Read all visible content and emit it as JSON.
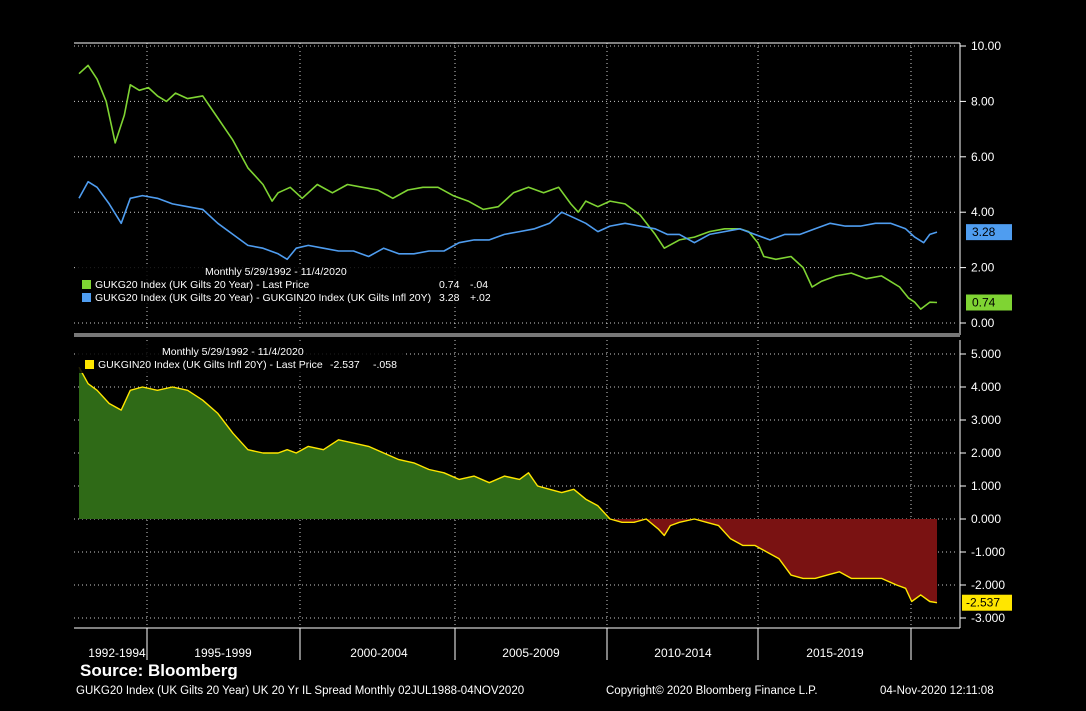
{
  "source_label": "Source: Bloomberg",
  "footer": {
    "left": "GUKG20 Index (UK Gilts 20 Year) UK 20 Yr IL Spread  Monthly 02JUL1988-04NOV2020",
    "middle": "Copyright© 2020 Bloomberg Finance L.P.",
    "right": "04-Nov-2020 12:11:08"
  },
  "colors": {
    "background": "#000000",
    "green_line": "#7fd433",
    "blue_line": "#4f9df0",
    "yellow_line": "#ffe600",
    "positive_fill": "#2f6a17",
    "negative_fill": "#7a1212",
    "grid": "#ffffff"
  },
  "chart_data": [
    {
      "type": "line",
      "legend": {
        "header": "Monthly 5/29/1992 - 11/4/2020",
        "entries": [
          {
            "label": "GUKG20 Index (UK Gilts 20 Year) - Last Price",
            "value": "0.74",
            "change": "-.04",
            "color": "#7fd433"
          },
          {
            "label": "GUKG20 Index (UK Gilts 20 Year) - GUKGIN20 Index (UK Gilts Infl 20Y)",
            "value": "3.28",
            "change": "+.02",
            "color": "#4f9df0"
          }
        ]
      },
      "ylim": [
        0,
        10
      ],
      "yticks": [
        "10.00",
        "8.00",
        "6.00",
        "4.00",
        "2.00",
        "0.00"
      ],
      "last_value_tags": [
        "3.28",
        "0.74"
      ],
      "series": [
        {
          "name": "GUKG20 Index (UK Gilts 20 Year) - Last Price",
          "x": [
            1992.4,
            1992.7,
            1993.0,
            1993.3,
            1993.6,
            1993.9,
            1994.1,
            1994.4,
            1994.7,
            1995.0,
            1995.3,
            1995.6,
            1996.0,
            1996.5,
            1997.0,
            1997.5,
            1998.0,
            1998.5,
            1998.8,
            1999.0,
            1999.4,
            1999.8,
            2000.3,
            2000.8,
            2001.3,
            2001.8,
            2002.3,
            2002.8,
            2003.3,
            2003.8,
            2004.3,
            2004.8,
            2005.3,
            2005.8,
            2006.3,
            2006.8,
            2007.3,
            2007.8,
            2008.3,
            2008.7,
            2008.95,
            2009.2,
            2009.6,
            2010.0,
            2010.5,
            2011.0,
            2011.5,
            2011.8,
            2012.3,
            2012.8,
            2013.3,
            2013.8,
            2014.3,
            2014.6,
            2014.9,
            2015.1,
            2015.5,
            2016.0,
            2016.4,
            2016.7,
            2017.0,
            2017.5,
            2018.0,
            2018.5,
            2019.0,
            2019.3,
            2019.6,
            2019.9,
            2020.1,
            2020.3,
            2020.6,
            2020.84
          ],
          "values": [
            9.0,
            9.3,
            8.8,
            8.0,
            6.5,
            7.5,
            8.6,
            8.4,
            8.5,
            8.2,
            8.0,
            8.3,
            8.1,
            8.2,
            7.4,
            6.6,
            5.6,
            5.0,
            4.4,
            4.7,
            4.9,
            4.5,
            5.0,
            4.7,
            5.0,
            4.9,
            4.8,
            4.5,
            4.8,
            4.9,
            4.9,
            4.6,
            4.4,
            4.1,
            4.2,
            4.7,
            4.9,
            4.7,
            4.9,
            4.3,
            4.0,
            4.4,
            4.2,
            4.4,
            4.3,
            3.9,
            3.2,
            2.7,
            3.0,
            3.1,
            3.3,
            3.4,
            3.4,
            3.3,
            2.9,
            2.4,
            2.3,
            2.4,
            2.0,
            1.3,
            1.5,
            1.7,
            1.8,
            1.6,
            1.7,
            1.5,
            1.3,
            0.9,
            0.75,
            0.5,
            0.75,
            0.74
          ]
        },
        {
          "name": "GUKG20 Index (UK Gilts 20 Year) - GUKGIN20 Index (UK Gilts Infl 20Y)",
          "x": [
            1992.4,
            1992.7,
            1993.0,
            1993.4,
            1993.8,
            1994.1,
            1994.5,
            1995.0,
            1995.5,
            1996.0,
            1996.5,
            1997.0,
            1997.5,
            1998.0,
            1998.5,
            1999.0,
            1999.3,
            1999.6,
            2000.0,
            2000.5,
            2001.0,
            2001.5,
            2002.0,
            2002.5,
            2003.0,
            2003.5,
            2004.0,
            2004.5,
            2005.0,
            2005.5,
            2006.0,
            2006.5,
            2007.0,
            2007.5,
            2008.0,
            2008.4,
            2008.8,
            2009.2,
            2009.6,
            2010.0,
            2010.5,
            2011.0,
            2011.5,
            2011.9,
            2012.3,
            2012.8,
            2013.3,
            2013.8,
            2014.3,
            2014.8,
            2015.3,
            2015.8,
            2016.3,
            2016.8,
            2017.3,
            2017.8,
            2018.3,
            2018.8,
            2019.3,
            2019.8,
            2020.1,
            2020.4,
            2020.6,
            2020.84
          ],
          "values": [
            4.5,
            5.1,
            4.9,
            4.3,
            3.6,
            4.5,
            4.6,
            4.5,
            4.3,
            4.2,
            4.1,
            3.6,
            3.2,
            2.8,
            2.7,
            2.5,
            2.3,
            2.7,
            2.8,
            2.7,
            2.6,
            2.6,
            2.4,
            2.7,
            2.5,
            2.5,
            2.6,
            2.6,
            2.9,
            3.0,
            3.0,
            3.2,
            3.3,
            3.4,
            3.6,
            4.0,
            3.8,
            3.6,
            3.3,
            3.5,
            3.6,
            3.5,
            3.4,
            3.2,
            3.2,
            2.9,
            3.2,
            3.3,
            3.4,
            3.2,
            3.0,
            3.2,
            3.2,
            3.4,
            3.6,
            3.5,
            3.5,
            3.6,
            3.6,
            3.4,
            3.1,
            2.9,
            3.2,
            3.28
          ]
        }
      ]
    },
    {
      "type": "area",
      "legend": {
        "header": "Monthly 5/29/1992 - 11/4/2020",
        "entries": [
          {
            "label": "GUKGIN20 Index (UK Gilts Infl 20Y) - Last Price",
            "value": "-2.537",
            "change": "-.058",
            "color": "#ffe600"
          }
        ]
      },
      "ylim": [
        -3,
        5
      ],
      "yticks": [
        "5.000",
        "4.000",
        "3.000",
        "2.000",
        "1.000",
        "0.000",
        "-1.000",
        "-2.000",
        "-3.000"
      ],
      "last_value_tag": "-2.537",
      "series": [
        {
          "name": "GUKGIN20 Index (UK Gilts Infl 20Y) - Last Price",
          "x": [
            1992.4,
            1992.7,
            1993.0,
            1993.4,
            1993.8,
            1994.1,
            1994.5,
            1995.0,
            1995.5,
            1996.0,
            1996.5,
            1997.0,
            1997.5,
            1998.0,
            1998.5,
            1999.0,
            1999.3,
            1999.6,
            2000.0,
            2000.5,
            2001.0,
            2001.5,
            2002.0,
            2002.5,
            2003.0,
            2003.5,
            2004.0,
            2004.5,
            2005.0,
            2005.5,
            2006.0,
            2006.5,
            2007.0,
            2007.3,
            2007.6,
            2008.0,
            2008.4,
            2008.8,
            2009.2,
            2009.6,
            2010.0,
            2010.4,
            2010.8,
            2011.2,
            2011.6,
            2011.8,
            2012.0,
            2012.3,
            2012.8,
            2013.2,
            2013.6,
            2014.0,
            2014.4,
            2014.8,
            2015.2,
            2015.6,
            2016.0,
            2016.4,
            2016.8,
            2017.2,
            2017.6,
            2018.0,
            2018.5,
            2019.0,
            2019.5,
            2019.8,
            2020.0,
            2020.3,
            2020.6,
            2020.84
          ],
          "values": [
            4.6,
            4.1,
            3.9,
            3.5,
            3.3,
            3.9,
            4.0,
            3.9,
            4.0,
            3.9,
            3.6,
            3.2,
            2.6,
            2.1,
            2.0,
            2.0,
            2.1,
            2.0,
            2.2,
            2.1,
            2.4,
            2.3,
            2.2,
            2.0,
            1.8,
            1.7,
            1.5,
            1.4,
            1.2,
            1.3,
            1.1,
            1.3,
            1.2,
            1.4,
            1.0,
            0.9,
            0.8,
            0.9,
            0.6,
            0.4,
            0.0,
            -0.1,
            -0.1,
            0.0,
            -0.3,
            -0.5,
            -0.2,
            -0.1,
            0.0,
            -0.1,
            -0.2,
            -0.6,
            -0.8,
            -0.8,
            -1.0,
            -1.2,
            -1.7,
            -1.8,
            -1.8,
            -1.7,
            -1.6,
            -1.8,
            -1.8,
            -1.8,
            -2.0,
            -2.1,
            -2.5,
            -2.3,
            -2.5,
            -2.537
          ]
        }
      ]
    }
  ],
  "x_axis": {
    "labels": [
      "1992-1994",
      "1995-1999",
      "2000-2004",
      "2005-2009",
      "2010-2014",
      "2015-2019"
    ]
  }
}
